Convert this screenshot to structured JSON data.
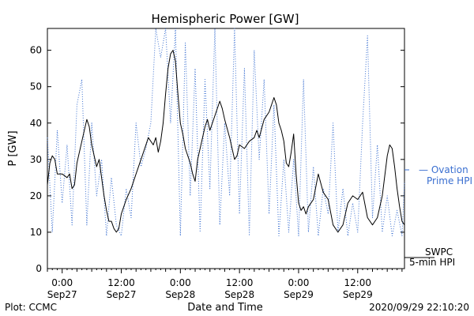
{
  "chart_data": {
    "type": "line",
    "title": "Hemispheric Power [GW]",
    "xlabel": "Date and Time",
    "ylabel": "P [GW]",
    "ylim": [
      0,
      66
    ],
    "xlim": [
      "2020-09-26T21:00",
      "2020-09-29T21:30"
    ],
    "yticks": [
      0,
      10,
      20,
      30,
      40,
      50,
      60
    ],
    "xticks": [
      {
        "time": "2020-09-27T00:00",
        "label_time": "0:00",
        "label_date": "Sep27"
      },
      {
        "time": "2020-09-27T12:00",
        "label_time": "12:00",
        "label_date": "Sep27"
      },
      {
        "time": "2020-09-28T00:00",
        "label_time": "0:00",
        "label_date": "Sep28"
      },
      {
        "time": "2020-09-28T12:00",
        "label_time": "12:00",
        "label_date": "Sep28"
      },
      {
        "time": "2020-09-29T00:00",
        "label_time": "0:00",
        "label_date": "Sep29"
      },
      {
        "time": "2020-09-29T12:00",
        "label_time": "12:00",
        "label_date": "Sep29"
      }
    ],
    "grid": false,
    "legend_position": "right",
    "series": [
      {
        "name": "Ovation Prime HPI",
        "legend_text": "— Ovation Prime HPI",
        "color": "#3a6fd0",
        "style": "dotted",
        "points": [
          [
            "2020-09-26T21:00",
            36
          ],
          [
            "2020-09-26T22:00",
            10
          ],
          [
            "2020-09-26T23:00",
            38
          ],
          [
            "2020-09-27T00:00",
            18
          ],
          [
            "2020-09-27T01:00",
            34
          ],
          [
            "2020-09-27T02:00",
            12
          ],
          [
            "2020-09-27T03:00",
            45
          ],
          [
            "2020-09-27T04:00",
            52
          ],
          [
            "2020-09-27T05:00",
            12
          ],
          [
            "2020-09-27T06:00",
            40
          ],
          [
            "2020-09-27T07:00",
            20
          ],
          [
            "2020-09-27T08:00",
            30
          ],
          [
            "2020-09-27T09:00",
            9
          ],
          [
            "2020-09-27T10:00",
            25
          ],
          [
            "2020-09-27T11:00",
            12
          ],
          [
            "2020-09-27T12:00",
            9
          ],
          [
            "2020-09-27T13:00",
            22
          ],
          [
            "2020-09-27T14:00",
            14
          ],
          [
            "2020-09-27T15:00",
            40
          ],
          [
            "2020-09-27T16:00",
            28
          ],
          [
            "2020-09-27T17:00",
            33
          ],
          [
            "2020-09-27T18:00",
            40
          ],
          [
            "2020-09-27T19:00",
            66
          ],
          [
            "2020-09-27T20:00",
            58
          ],
          [
            "2020-09-27T21:00",
            66
          ],
          [
            "2020-09-27T22:00",
            40
          ],
          [
            "2020-09-27T23:00",
            66
          ],
          [
            "2020-09-28T00:00",
            9
          ],
          [
            "2020-09-28T01:00",
            62
          ],
          [
            "2020-09-28T02:00",
            20
          ],
          [
            "2020-09-28T03:00",
            55
          ],
          [
            "2020-09-28T04:00",
            10
          ],
          [
            "2020-09-28T05:00",
            52
          ],
          [
            "2020-09-28T06:00",
            22
          ],
          [
            "2020-09-28T07:00",
            66
          ],
          [
            "2020-09-28T08:00",
            12
          ],
          [
            "2020-09-28T09:00",
            40
          ],
          [
            "2020-09-28T10:00",
            20
          ],
          [
            "2020-09-28T11:00",
            66
          ],
          [
            "2020-09-28T12:00",
            15
          ],
          [
            "2020-09-28T13:00",
            55
          ],
          [
            "2020-09-28T14:00",
            9
          ],
          [
            "2020-09-28T15:00",
            60
          ],
          [
            "2020-09-28T16:00",
            30
          ],
          [
            "2020-09-28T17:00",
            52
          ],
          [
            "2020-09-28T18:00",
            15
          ],
          [
            "2020-09-28T19:00",
            45
          ],
          [
            "2020-09-28T20:00",
            9
          ],
          [
            "2020-09-28T21:00",
            30
          ],
          [
            "2020-09-28T22:00",
            10
          ],
          [
            "2020-09-28T23:00",
            30
          ],
          [
            "2020-09-29T00:00",
            9
          ],
          [
            "2020-09-29T01:00",
            52
          ],
          [
            "2020-09-29T02:00",
            10
          ],
          [
            "2020-09-29T03:00",
            28
          ],
          [
            "2020-09-29T04:00",
            9
          ],
          [
            "2020-09-29T05:00",
            22
          ],
          [
            "2020-09-29T06:00",
            15
          ],
          [
            "2020-09-29T07:00",
            40
          ],
          [
            "2020-09-29T08:00",
            10
          ],
          [
            "2020-09-29T09:00",
            22
          ],
          [
            "2020-09-29T10:00",
            9
          ],
          [
            "2020-09-29T11:00",
            18
          ],
          [
            "2020-09-29T12:00",
            10
          ],
          [
            "2020-09-29T13:00",
            40
          ],
          [
            "2020-09-29T14:00",
            64
          ],
          [
            "2020-09-29T15:00",
            14
          ],
          [
            "2020-09-29T16:00",
            34
          ],
          [
            "2020-09-29T17:00",
            10
          ],
          [
            "2020-09-29T18:00",
            20
          ],
          [
            "2020-09-29T19:00",
            9
          ],
          [
            "2020-09-29T20:00",
            16
          ],
          [
            "2020-09-29T21:00",
            9
          ],
          [
            "2020-09-29T21:30",
            24
          ]
        ]
      },
      {
        "name": "SWPC 5-min HPI",
        "legend_text": "SWPC 5-min HPI",
        "color": "#000000",
        "style": "solid",
        "points": [
          [
            "2020-09-26T21:00",
            23
          ],
          [
            "2020-09-26T21:30",
            29
          ],
          [
            "2020-09-26T22:00",
            31
          ],
          [
            "2020-09-26T22:30",
            30
          ],
          [
            "2020-09-26T23:00",
            26
          ],
          [
            "2020-09-27T00:00",
            26
          ],
          [
            "2020-09-27T01:00",
            25
          ],
          [
            "2020-09-27T01:30",
            26
          ],
          [
            "2020-09-27T02:00",
            22
          ],
          [
            "2020-09-27T02:30",
            23
          ],
          [
            "2020-09-27T03:00",
            29
          ],
          [
            "2020-09-27T04:00",
            35
          ],
          [
            "2020-09-27T05:00",
            41
          ],
          [
            "2020-09-27T05:30",
            39
          ],
          [
            "2020-09-27T06:00",
            34
          ],
          [
            "2020-09-27T07:00",
            28
          ],
          [
            "2020-09-27T07:30",
            30
          ],
          [
            "2020-09-27T08:00",
            25
          ],
          [
            "2020-09-27T08:30",
            20
          ],
          [
            "2020-09-27T09:00",
            16
          ],
          [
            "2020-09-27T09:30",
            13
          ],
          [
            "2020-09-27T10:00",
            13
          ],
          [
            "2020-09-27T10:30",
            11
          ],
          [
            "2020-09-27T11:00",
            10
          ],
          [
            "2020-09-27T11:30",
            11
          ],
          [
            "2020-09-27T12:00",
            15
          ],
          [
            "2020-09-27T13:00",
            19
          ],
          [
            "2020-09-27T14:00",
            22
          ],
          [
            "2020-09-27T15:00",
            26
          ],
          [
            "2020-09-27T16:00",
            30
          ],
          [
            "2020-09-27T17:00",
            34
          ],
          [
            "2020-09-27T17:30",
            36
          ],
          [
            "2020-09-27T18:00",
            35
          ],
          [
            "2020-09-27T18:30",
            34
          ],
          [
            "2020-09-27T19:00",
            36
          ],
          [
            "2020-09-27T19:30",
            32
          ],
          [
            "2020-09-27T20:00",
            35
          ],
          [
            "2020-09-27T20:30",
            40
          ],
          [
            "2020-09-27T21:00",
            48
          ],
          [
            "2020-09-27T21:30",
            55
          ],
          [
            "2020-09-27T22:00",
            59
          ],
          [
            "2020-09-27T22:30",
            60
          ],
          [
            "2020-09-27T23:00",
            57
          ],
          [
            "2020-09-27T23:30",
            48
          ],
          [
            "2020-09-28T00:00",
            40
          ],
          [
            "2020-09-28T00:30",
            37
          ],
          [
            "2020-09-28T01:00",
            33
          ],
          [
            "2020-09-28T02:00",
            29
          ],
          [
            "2020-09-28T02:30",
            26
          ],
          [
            "2020-09-28T03:00",
            24
          ],
          [
            "2020-09-28T03:30",
            30
          ],
          [
            "2020-09-28T04:00",
            33
          ],
          [
            "2020-09-28T05:00",
            39
          ],
          [
            "2020-09-28T05:30",
            41
          ],
          [
            "2020-09-28T06:00",
            38
          ],
          [
            "2020-09-28T07:00",
            42
          ],
          [
            "2020-09-28T08:00",
            46
          ],
          [
            "2020-09-28T08:30",
            44
          ],
          [
            "2020-09-28T09:00",
            41
          ],
          [
            "2020-09-28T10:00",
            36
          ],
          [
            "2020-09-28T10:30",
            33
          ],
          [
            "2020-09-28T11:00",
            30
          ],
          [
            "2020-09-28T11:30",
            31
          ],
          [
            "2020-09-28T12:00",
            34
          ],
          [
            "2020-09-28T13:00",
            33
          ],
          [
            "2020-09-28T14:00",
            35
          ],
          [
            "2020-09-28T15:00",
            36
          ],
          [
            "2020-09-28T15:30",
            38
          ],
          [
            "2020-09-28T16:00",
            36
          ],
          [
            "2020-09-28T17:00",
            41
          ],
          [
            "2020-09-28T18:00",
            43
          ],
          [
            "2020-09-28T19:00",
            47
          ],
          [
            "2020-09-28T19:30",
            45
          ],
          [
            "2020-09-28T20:00",
            40
          ],
          [
            "2020-09-28T20:30",
            38
          ],
          [
            "2020-09-28T21:00",
            35
          ],
          [
            "2020-09-28T21:30",
            29
          ],
          [
            "2020-09-28T22:00",
            28
          ],
          [
            "2020-09-28T22:30",
            32
          ],
          [
            "2020-09-28T23:00",
            37
          ],
          [
            "2020-09-28T23:30",
            26
          ],
          [
            "2020-09-29T00:00",
            18
          ],
          [
            "2020-09-29T00:30",
            16
          ],
          [
            "2020-09-29T01:00",
            17
          ],
          [
            "2020-09-29T01:30",
            15
          ],
          [
            "2020-09-29T02:00",
            17
          ],
          [
            "2020-09-29T03:00",
            19
          ],
          [
            "2020-09-29T04:00",
            26
          ],
          [
            "2020-09-29T05:00",
            21
          ],
          [
            "2020-09-29T06:00",
            19
          ],
          [
            "2020-09-29T07:00",
            12
          ],
          [
            "2020-09-29T08:00",
            10
          ],
          [
            "2020-09-29T09:00",
            12
          ],
          [
            "2020-09-29T10:00",
            18
          ],
          [
            "2020-09-29T11:00",
            20
          ],
          [
            "2020-09-29T12:00",
            19
          ],
          [
            "2020-09-29T13:00",
            21
          ],
          [
            "2020-09-29T14:00",
            14
          ],
          [
            "2020-09-29T15:00",
            12
          ],
          [
            "2020-09-29T16:00",
            14
          ],
          [
            "2020-09-29T17:00",
            20
          ],
          [
            "2020-09-29T18:00",
            31
          ],
          [
            "2020-09-29T18:30",
            34
          ],
          [
            "2020-09-29T19:00",
            33
          ],
          [
            "2020-09-29T19:30",
            28
          ],
          [
            "2020-09-29T20:00",
            22
          ],
          [
            "2020-09-29T20:30",
            17
          ],
          [
            "2020-09-29T21:00",
            13
          ],
          [
            "2020-09-29T21:30",
            12
          ]
        ]
      }
    ]
  },
  "footer": {
    "plot_source": "Plot: CCMC",
    "timestamp": "2020/09/29 22:10:20"
  }
}
